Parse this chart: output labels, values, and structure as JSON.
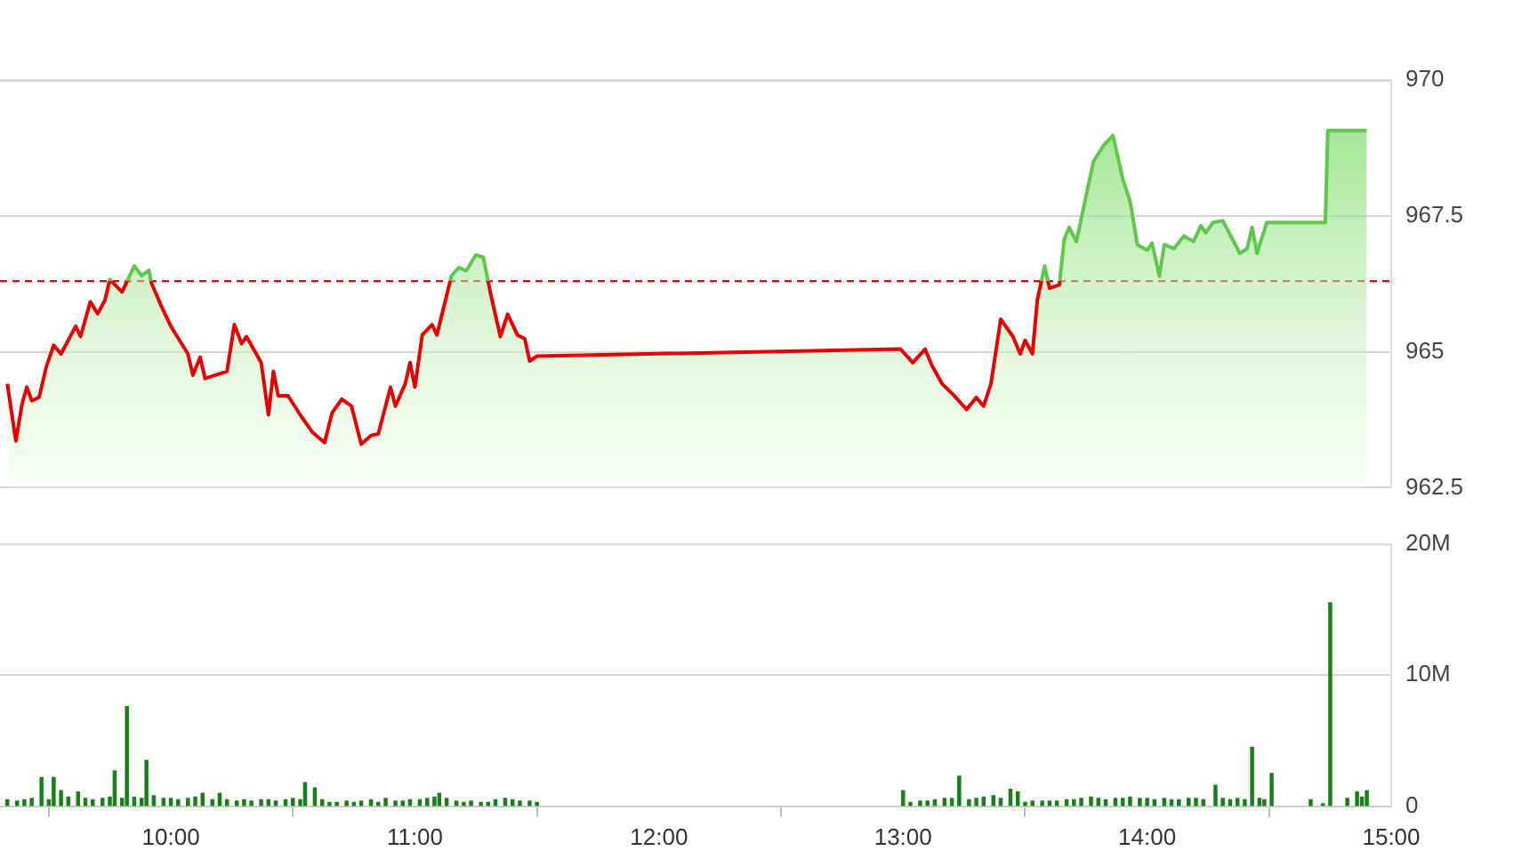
{
  "chart_data": [
    {
      "type": "area",
      "xlim": [
        9.3,
        15
      ],
      "ylim": [
        962.5,
        970
      ],
      "yticks": [
        962.5,
        965,
        967.5,
        970
      ],
      "tick_labels": "y",
      "grid": "y",
      "marker": "none",
      "ref_lines": [
        {
          "axis": "y",
          "value": 966.3,
          "color": "#e60000",
          "line_style": "dashed"
        }
      ],
      "series": [
        {
          "color": "#e60000",
          "x": [
            9.33,
            9.365,
            9.39,
            9.41,
            9.43,
            9.46,
            9.49,
            9.52,
            9.55,
            9.61,
            9.63,
            9.67,
            9.7,
            9.73,
            9.75,
            9.8,
            9.85,
            9.88,
            9.91,
            9.92,
            9.96,
            10.0,
            10.07,
            10.09,
            10.12,
            10.14,
            10.23,
            10.26,
            10.29,
            10.31,
            10.37,
            10.4,
            10.42,
            10.44,
            10.48,
            10.53,
            10.58,
            10.63,
            10.66,
            10.7,
            10.74,
            10.78,
            10.82,
            10.85,
            10.9,
            10.92,
            10.96,
            10.98,
            11.0,
            11.03,
            11.07,
            11.09,
            11.15,
            11.18,
            11.21,
            11.25,
            11.28,
            11.31,
            11.35,
            11.38,
            11.42,
            11.45,
            11.47,
            11.5,
            12.99,
            13.04,
            13.09,
            13.12,
            13.16,
            13.21,
            13.26,
            13.3,
            13.33,
            13.36,
            13.4,
            13.45,
            13.48,
            13.5,
            13.53,
            13.55,
            13.58,
            13.6,
            13.64,
            13.66,
            13.68,
            13.71,
            13.78,
            13.82,
            13.86,
            13.9,
            13.93,
            13.96,
            14.0,
            14.02,
            14.05,
            14.07,
            14.11,
            14.15,
            14.19,
            14.22,
            14.24,
            14.27,
            14.31,
            14.38,
            14.41,
            14.43,
            14.45,
            14.49,
            14.73,
            14.74,
            14.9
          ],
          "values": [
            964.41,
            963.36,
            964.03,
            964.35,
            964.1,
            964.16,
            964.73,
            965.12,
            964.96,
            965.47,
            965.28,
            965.92,
            965.7,
            965.95,
            966.33,
            966.1,
            966.58,
            966.4,
            966.5,
            966.27,
            965.85,
            965.47,
            964.96,
            964.57,
            964.9,
            964.51,
            964.64,
            965.5,
            965.15,
            965.28,
            964.8,
            963.84,
            964.64,
            964.19,
            964.19,
            963.84,
            963.52,
            963.33,
            963.87,
            964.13,
            964.0,
            963.3,
            963.46,
            963.49,
            964.35,
            964.0,
            964.41,
            964.8,
            964.35,
            965.31,
            965.5,
            965.31,
            966.4,
            966.55,
            966.49,
            966.78,
            966.74,
            966.07,
            965.28,
            965.69,
            965.31,
            965.24,
            964.83,
            964.92,
            965.05,
            964.8,
            965.05,
            964.73,
            964.41,
            964.19,
            963.94,
            964.16,
            964.0,
            964.41,
            965.6,
            965.28,
            964.96,
            965.21,
            964.96,
            965.95,
            966.58,
            966.17,
            966.23,
            967.06,
            967.29,
            967.03,
            968.5,
            968.79,
            968.98,
            968.18,
            967.77,
            966.97,
            966.87,
            967.0,
            966.39,
            966.97,
            966.9,
            967.13,
            967.03,
            967.32,
            967.19,
            967.38,
            967.41,
            966.81,
            966.9,
            967.29,
            966.81,
            967.38,
            967.38,
            969.07,
            969.07
          ]
        }
      ]
    },
    {
      "type": "bar",
      "xlim": [
        9.3,
        15
      ],
      "ylim": [
        0,
        20
      ],
      "grid": "y",
      "color": "#1a7f1a",
      "xticks": [
        {
          "value": 10,
          "label": "10:00"
        },
        {
          "value": 11,
          "label": "11:00"
        },
        {
          "value": 12,
          "label": "12:00"
        },
        {
          "value": 13,
          "label": "13:00"
        },
        {
          "value": 14,
          "label": "14:00"
        },
        {
          "value": 15,
          "label": "15:00"
        }
      ],
      "yticks": [
        {
          "value": 0,
          "label": "0"
        },
        {
          "value": 10,
          "label": "10M"
        },
        {
          "value": 20,
          "label": "20M"
        }
      ],
      "x": [
        9.33,
        9.37,
        9.4,
        9.43,
        9.47,
        9.5,
        9.52,
        9.55,
        9.58,
        9.62,
        9.65,
        9.68,
        9.72,
        9.75,
        9.77,
        9.8,
        9.82,
        9.85,
        9.88,
        9.9,
        9.93,
        9.97,
        10.0,
        10.03,
        10.07,
        10.1,
        10.13,
        10.17,
        10.2,
        10.23,
        10.27,
        10.3,
        10.33,
        10.37,
        10.4,
        10.43,
        10.47,
        10.5,
        10.53,
        10.55,
        10.59,
        10.62,
        10.65,
        10.68,
        10.72,
        10.75,
        10.78,
        10.82,
        10.85,
        10.88,
        10.92,
        10.95,
        10.98,
        11.02,
        11.05,
        11.08,
        11.1,
        11.13,
        11.17,
        11.2,
        11.23,
        11.27,
        11.3,
        11.33,
        11.37,
        11.4,
        11.43,
        11.47,
        11.5,
        13.0,
        13.03,
        13.07,
        13.1,
        13.13,
        13.17,
        13.2,
        13.23,
        13.27,
        13.3,
        13.33,
        13.37,
        13.4,
        13.44,
        13.47,
        13.5,
        13.53,
        13.57,
        13.6,
        13.63,
        13.67,
        13.7,
        13.73,
        13.77,
        13.8,
        13.83,
        13.87,
        13.9,
        13.93,
        13.97,
        14.0,
        14.03,
        14.07,
        14.1,
        14.13,
        14.17,
        14.2,
        14.23,
        14.28,
        14.31,
        14.34,
        14.37,
        14.4,
        14.43,
        14.46,
        14.48,
        14.51,
        14.67,
        14.72,
        14.75,
        14.82,
        14.86,
        14.88,
        14.9
      ],
      "values": [
        0.5,
        0.4,
        0.5,
        0.6,
        2.2,
        0.5,
        2.2,
        1.2,
        0.7,
        1.1,
        0.6,
        0.5,
        0.6,
        0.7,
        2.7,
        0.6,
        7.6,
        0.7,
        0.6,
        3.5,
        0.8,
        0.6,
        0.6,
        0.5,
        0.6,
        0.7,
        1.0,
        0.5,
        1.0,
        0.5,
        0.4,
        0.5,
        0.4,
        0.5,
        0.5,
        0.4,
        0.5,
        0.6,
        0.5,
        1.8,
        1.4,
        0.5,
        0.3,
        0.3,
        0.4,
        0.3,
        0.4,
        0.5,
        0.3,
        0.6,
        0.4,
        0.4,
        0.5,
        0.5,
        0.6,
        0.7,
        1.0,
        0.6,
        0.4,
        0.3,
        0.4,
        0.3,
        0.3,
        0.5,
        0.6,
        0.5,
        0.4,
        0.4,
        0.3,
        1.2,
        0.3,
        0.4,
        0.4,
        0.5,
        0.6,
        0.6,
        2.3,
        0.5,
        0.6,
        0.7,
        0.8,
        0.6,
        1.3,
        1.1,
        0.3,
        0.4,
        0.4,
        0.4,
        0.4,
        0.5,
        0.5,
        0.6,
        0.7,
        0.6,
        0.5,
        0.6,
        0.6,
        0.7,
        0.6,
        0.6,
        0.5,
        0.6,
        0.5,
        0.5,
        0.6,
        0.6,
        0.5,
        1.6,
        0.6,
        0.5,
        0.6,
        0.5,
        4.5,
        0.6,
        0.5,
        2.5,
        0.5,
        0.2,
        15.5,
        0.6,
        1.1,
        0.7,
        1.2
      ]
    }
  ]
}
